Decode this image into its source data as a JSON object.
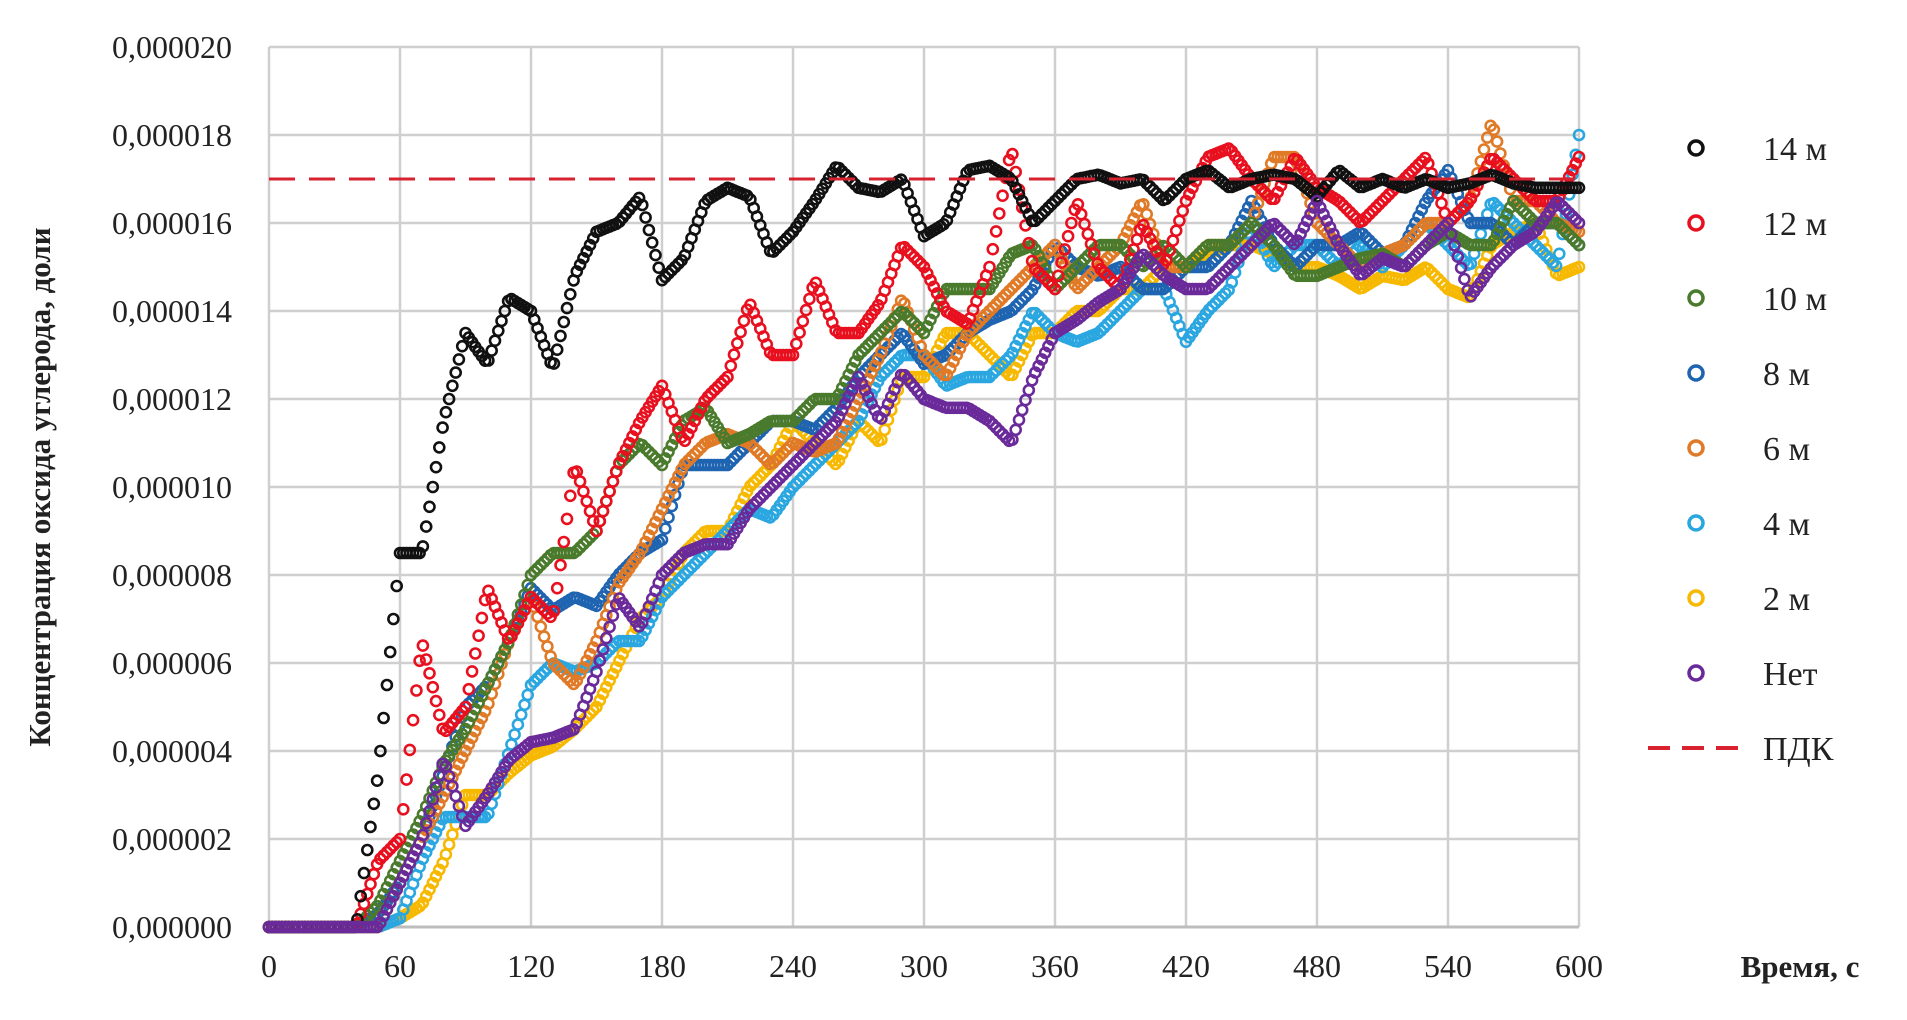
{
  "chart_data": {
    "type": "scatter",
    "title": "",
    "xlabel": "Время, с",
    "ylabel": "Концентрация оксида углерода, доли",
    "xlim": [
      0,
      600
    ],
    "ylim": [
      0,
      2e-05
    ],
    "x_ticks": [
      "0",
      "60",
      "120",
      "180",
      "240",
      "300",
      "360",
      "420",
      "480",
      "540",
      "600"
    ],
    "y_ticks": [
      "0,000000",
      "0,000002",
      "0,000004",
      "0,000006",
      "0,000008",
      "0,000010",
      "0,000012",
      "0,000014",
      "0,000016",
      "0,000018",
      "0,000020"
    ],
    "grid": true,
    "legend_position": "right",
    "x_step_seconds": 10,
    "values_scale": 1e-06,
    "series": [
      {
        "name": "14 м",
        "color": "#111111",
        "values": [
          0,
          0,
          0,
          0,
          0,
          3.5,
          8.5,
          8.5,
          11.5,
          13.5,
          12.8,
          14.3,
          14,
          12.7,
          14.8,
          15.8,
          16,
          16.6,
          14.7,
          15.2,
          16.5,
          16.8,
          16.6,
          15.3,
          15.8,
          16.5,
          17.3,
          16.8,
          16.7,
          17,
          15.7,
          16,
          17.2,
          17.3,
          17,
          16,
          16.5,
          17,
          17.1,
          16.9,
          17,
          16.5,
          17,
          17.2,
          16.8,
          17,
          17.1,
          17,
          16.6,
          17.2,
          16.8,
          17,
          16.8,
          17,
          16.8,
          16.9,
          17.1,
          16.9,
          16.8,
          16.8,
          16.8
        ]
      },
      {
        "name": "12 м",
        "color": "#e8101f",
        "values": [
          0,
          0,
          0,
          0,
          0,
          1.5,
          2,
          6.5,
          4.4,
          5,
          7.7,
          6.5,
          7.5,
          7,
          10.5,
          9,
          10.5,
          11.5,
          12.3,
          11,
          12,
          12.5,
          14.2,
          13,
          13,
          14.7,
          13.5,
          13.5,
          14.2,
          15.5,
          15,
          14,
          13.7,
          15,
          17.7,
          15,
          14.5,
          16.5,
          15,
          14.5,
          16,
          15,
          16.5,
          17.5,
          17.7,
          17,
          16.5,
          17.5,
          16.8,
          16.5,
          16,
          16.5,
          17,
          17.5,
          16,
          16.5,
          17.5,
          17,
          16.5,
          16.5,
          17.5
        ]
      },
      {
        "name": "10 м",
        "color": "#4a7a2c",
        "values": [
          0,
          0,
          0,
          0,
          0,
          0.5,
          1.5,
          2.5,
          3.7,
          4.5,
          5.5,
          6.5,
          8,
          8.5,
          8.5,
          9,
          10.5,
          11,
          10.5,
          11.5,
          11.8,
          11,
          11.2,
          11.5,
          11.5,
          12,
          12,
          13,
          13.5,
          14,
          13.5,
          14.5,
          14.5,
          14.5,
          15.3,
          15.5,
          14.5,
          15,
          15.5,
          15.5,
          15,
          15.5,
          15,
          15.5,
          15.5,
          16,
          15.5,
          14.8,
          14.8,
          15,
          15.2,
          15.3,
          15,
          15.5,
          15.8,
          15.5,
          15.5,
          16.5,
          16,
          16,
          15.5
        ]
      },
      {
        "name": "8 м",
        "color": "#1f64b0",
        "values": [
          0,
          0,
          0,
          0,
          0,
          0.3,
          1,
          2,
          3.5,
          5,
          5.5,
          6.5,
          7.7,
          7.2,
          7.5,
          7.3,
          8,
          8.5,
          8.8,
          10.5,
          10.5,
          10.5,
          11,
          11.5,
          11.5,
          11.3,
          11.8,
          12.5,
          13,
          13.5,
          12.8,
          13,
          13.5,
          13.8,
          14,
          14.5,
          15.5,
          15,
          14.8,
          15,
          14.5,
          14.5,
          15,
          15,
          15.5,
          16.5,
          15.5,
          15,
          15.5,
          15.5,
          15.8,
          15.3,
          15.5,
          16.5,
          17.2,
          16,
          16,
          15.5,
          16,
          16,
          15.5
        ]
      },
      {
        "name": "6 м",
        "color": "#e07a26",
        "values": [
          0,
          0,
          0,
          0,
          0,
          0,
          1,
          2,
          3,
          4,
          5,
          6.5,
          7.5,
          6,
          5.5,
          6.5,
          7.8,
          8.5,
          9.5,
          10.5,
          11,
          11.2,
          11,
          10.5,
          11,
          10.8,
          11,
          12,
          13,
          14.3,
          13,
          12.5,
          13.5,
          14,
          14.5,
          15,
          15.5,
          14.5,
          15,
          15.5,
          16.5,
          15,
          15,
          15.5,
          15.5,
          16,
          17.5,
          17.5,
          16,
          15.5,
          15,
          15.3,
          15.5,
          16,
          16,
          16.5,
          18.3,
          16.5,
          16.5,
          16,
          15.8
        ]
      },
      {
        "name": "4 м",
        "color": "#2aa6e0",
        "values": [
          0,
          0,
          0,
          0,
          0,
          0,
          0.2,
          1.5,
          2.5,
          2.5,
          2.5,
          4,
          5.5,
          6,
          5.8,
          6,
          6.5,
          6.5,
          7.5,
          8,
          8.5,
          9,
          9.5,
          9.3,
          10,
          10.5,
          11,
          11.5,
          12.5,
          13,
          13,
          12.3,
          12.5,
          12.5,
          13,
          14,
          13.5,
          13.3,
          13.5,
          14,
          14.5,
          14.5,
          13.3,
          14,
          14.5,
          16,
          15,
          15.5,
          15.5,
          15,
          15.5,
          15,
          15.5,
          16,
          15.5,
          15,
          16.5,
          16,
          15.5,
          15,
          18
        ]
      },
      {
        "name": "2 м",
        "color": "#f7b800",
        "values": [
          0,
          0,
          0,
          0,
          0,
          0,
          0.2,
          0.5,
          1.5,
          3,
          3,
          3.5,
          3.9,
          4.1,
          4.5,
          5,
          6,
          7,
          7.5,
          8.5,
          9,
          9,
          10,
          10.5,
          11.5,
          11,
          10.5,
          11.5,
          11,
          12.5,
          12.5,
          13.5,
          13.5,
          13,
          12.5,
          13.5,
          13.5,
          14,
          14,
          14.5,
          14.5,
          15,
          15,
          15.3,
          15.5,
          15.5,
          15.3,
          15,
          15,
          14.8,
          14.5,
          14.8,
          14.7,
          15,
          14.5,
          14.3,
          15.5,
          15.8,
          16,
          14.8,
          15
        ]
      },
      {
        "name": "Нет",
        "color": "#6a2a9a",
        "values": [
          0,
          0,
          0,
          0,
          0,
          0,
          1,
          2,
          3.8,
          2.3,
          3,
          3.8,
          4.2,
          4.3,
          4.5,
          5.8,
          7.5,
          6.8,
          8,
          8.5,
          8.7,
          8.7,
          9.5,
          10,
          10.5,
          11,
          11.5,
          12.5,
          11.5,
          12.6,
          12,
          11.8,
          11.8,
          11.5,
          11,
          12.5,
          13.5,
          13.8,
          14.2,
          14.5,
          15.3,
          14.8,
          14.5,
          14.5,
          15,
          15.5,
          16,
          15.5,
          16.5,
          15.5,
          14.8,
          15.2,
          15,
          15.5,
          16,
          14.3,
          15,
          15.5,
          15.8,
          16.5,
          16
        ]
      }
    ],
    "reference_line": {
      "name": "ПДК",
      "value": 1.7e-05,
      "color": "#d9222f",
      "style": "dashed"
    }
  }
}
